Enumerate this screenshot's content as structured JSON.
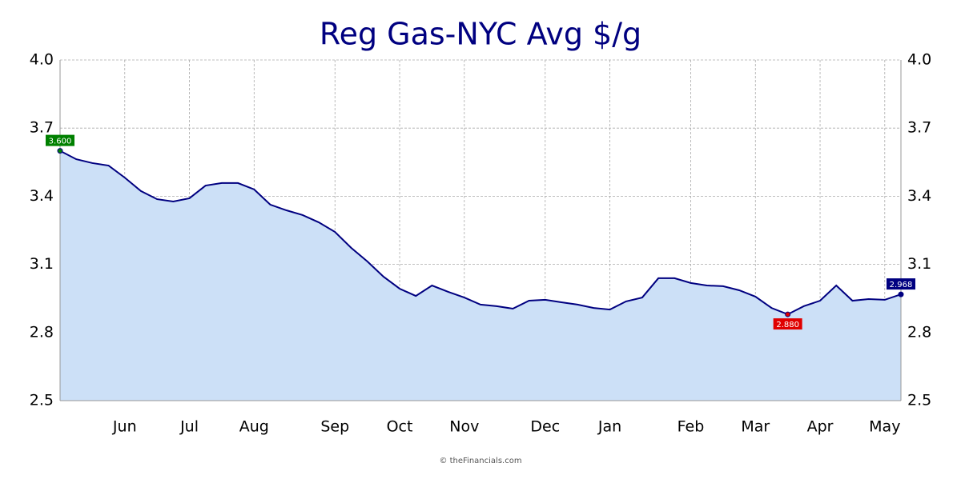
{
  "chart_data": {
    "type": "area",
    "title": "Reg Gas-NYC Avg $/g",
    "source": "© theFinancials.com",
    "categories": [
      null,
      null,
      null,
      null,
      "Jun",
      null,
      null,
      null,
      "Jul",
      null,
      null,
      null,
      "Aug",
      null,
      null,
      null,
      null,
      "Sep",
      null,
      null,
      null,
      "Oct",
      null,
      null,
      null,
      "Nov",
      null,
      null,
      null,
      null,
      "Dec",
      null,
      null,
      null,
      "Jan",
      null,
      null,
      null,
      null,
      "Feb",
      null,
      null,
      null,
      "Mar",
      null,
      null,
      null,
      "Apr",
      null,
      null,
      null,
      "May",
      null
    ],
    "values": [
      3.6,
      3.563,
      3.546,
      3.535,
      3.482,
      3.423,
      3.387,
      3.377,
      3.391,
      3.447,
      3.458,
      3.458,
      3.43,
      3.363,
      3.338,
      3.317,
      3.285,
      3.243,
      3.173,
      3.113,
      3.046,
      2.993,
      2.961,
      3.007,
      2.979,
      2.954,
      2.923,
      2.916,
      2.905,
      2.94,
      2.944,
      2.933,
      2.923,
      2.908,
      2.901,
      2.937,
      2.954,
      3.039,
      3.039,
      3.018,
      3.007,
      3.004,
      2.986,
      2.958,
      2.908,
      2.88,
      2.916,
      2.94,
      3.007,
      2.94,
      2.947,
      2.944,
      2.968
    ],
    "value_labels": [
      "3.600",
      null,
      null,
      null,
      null,
      null,
      null,
      null,
      null,
      null,
      null,
      null,
      null,
      null,
      null,
      null,
      null,
      null,
      null,
      null,
      null,
      null,
      null,
      null,
      null,
      null,
      null,
      null,
      null,
      null,
      null,
      null,
      null,
      null,
      null,
      null,
      null,
      null,
      null,
      null,
      null,
      null,
      null,
      null,
      null,
      "2.880",
      null,
      null,
      null,
      null,
      null,
      null,
      "2.968"
    ],
    "value_label_colors": [
      "#008000",
      "#e00000",
      "#000080"
    ],
    "color": "#000080",
    "fill": "#cce0f7",
    "ylim": [
      2.5,
      4.0
    ],
    "yticks": [
      2.5,
      2.8,
      3.1,
      3.4,
      3.7,
      {
        "value": 4.0,
        "label": "4.0"
      }
    ],
    "grid": true
  }
}
